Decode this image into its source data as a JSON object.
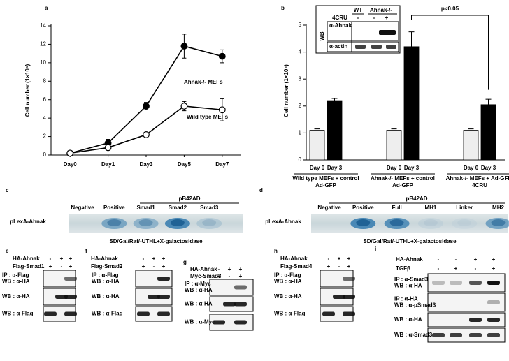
{
  "chart_data": [
    {
      "type": "line",
      "panel": "a",
      "ylabel": "Cell number (1×10⁵)",
      "categories": [
        "Day0",
        "Day1",
        "Day3",
        "Day5",
        "Day7"
      ],
      "series": [
        {
          "name": "Ahnak-/- MEFs",
          "color": "#000000",
          "values": [
            0.2,
            1.3,
            5.3,
            11.8,
            10.7
          ],
          "errors": [
            0.1,
            0.4,
            0.4,
            1.3,
            0.7
          ]
        },
        {
          "name": "Wild type MEFs",
          "color": "#ffffff",
          "values": [
            0.2,
            0.8,
            2.2,
            5.3,
            4.9
          ],
          "errors": [
            0.05,
            0.2,
            0.1,
            0.5,
            1.2
          ]
        }
      ],
      "ylim": [
        0,
        14
      ],
      "yticks": [
        0,
        2,
        4,
        6,
        8,
        10,
        12,
        14
      ]
    },
    {
      "type": "bar",
      "panel": "b",
      "ylabel": "Cell number (1×10⁵)",
      "categories": [
        "Wild type MEFs + control Ad-GFP",
        "Ahnak-/- MEFs + control Ad-GFP",
        "Ahnak-/- MEFs + Ad-GFP-4CRU"
      ],
      "series": [
        {
          "name": "Day 0",
          "color": "#eeeeee",
          "values": [
            1.1,
            1.1,
            1.1
          ],
          "errors": [
            0.05,
            0.05,
            0.05
          ]
        },
        {
          "name": "Day 3",
          "color": "#000000",
          "values": [
            2.2,
            4.2,
            2.05
          ],
          "errors": [
            0.08,
            0.55,
            0.2
          ]
        }
      ],
      "ylim": [
        0,
        5
      ],
      "yticks": [
        0,
        1,
        2,
        3,
        4,
        5
      ],
      "annotation": "p<0.05",
      "inset": {
        "columns": [
          "WT",
          "Ahnak-/-"
        ],
        "treatment": "4CRU",
        "signs": [
          "-",
          "-",
          "+"
        ],
        "side_label": "WB",
        "blots": [
          "α-Ahnak",
          "α-actin"
        ]
      }
    }
  ],
  "panels": {
    "assays": [
      {
        "letter": "c",
        "group_label": "pB42AD",
        "columns": [
          "Negative",
          "Positive",
          "Smad1",
          "Smad2",
          "Smad3"
        ],
        "row_label": "pLexA-Ahnak",
        "caption": "SD/Gal/Raf/-UTHL+X-galactosidase"
      },
      {
        "letter": "d",
        "group_label": "pB42AD",
        "columns": [
          "Negative",
          "Positive",
          "Full",
          "MH1",
          "Linker",
          "MH2"
        ],
        "row_label": "pLexA-Ahnak",
        "caption": "SD/Gal/Raf/-UTHL+X-galactosidase"
      }
    ],
    "blots": [
      {
        "letter": "e",
        "rows": [
          {
            "label": "HA-Ahnak",
            "signs": [
              "-",
              "+",
              "+"
            ]
          },
          {
            "label": "Flag-Smad1",
            "signs": [
              "+",
              "-",
              "+"
            ]
          }
        ],
        "blots": [
          [
            "IP : α-Flag",
            "WB : α-HA"
          ],
          [
            "WB : α-HA"
          ],
          [
            "WB : α-Flag"
          ]
        ]
      },
      {
        "letter": "f",
        "rows": [
          {
            "label": "HA-Ahnak",
            "signs": [
              "-",
              "+",
              "+"
            ]
          },
          {
            "label": "Flag-Smad2",
            "signs": [
              "+",
              "-",
              "+"
            ]
          }
        ],
        "blots": [
          [
            "IP : α-Flag",
            "WB : α-HA"
          ],
          [
            "WB : α-HA"
          ],
          [
            "WB : α-Flag"
          ]
        ]
      },
      {
        "letter": "g",
        "rows": [
          {
            "label": "HA-Ahnak",
            "signs": [
              "-",
              "+",
              "+"
            ]
          },
          {
            "label": "Myc-Smad3",
            "signs": [
              "+",
              "-",
              "+"
            ]
          }
        ],
        "blots": [
          [
            "IP : α-Myc",
            "WB : α-HA"
          ],
          [
            "WB : α-HA"
          ],
          [
            "WB : α-Myc"
          ]
        ]
      },
      {
        "letter": "h",
        "rows": [
          {
            "label": "HA-Ahnak",
            "signs": [
              "-",
              "+",
              "+"
            ]
          },
          {
            "label": "Flag-Smad4",
            "signs": [
              "+",
              "-",
              "+"
            ]
          }
        ],
        "blots": [
          [
            "IP : α-Flag",
            "WB : α-HA"
          ],
          [
            "WB : α-HA"
          ],
          [
            "WB : α-Flag"
          ]
        ]
      },
      {
        "letter": "i",
        "rows": [
          {
            "label": "HA-Ahnak",
            "signs": [
              "-",
              "-",
              "+",
              "+"
            ]
          },
          {
            "label": "TGFβ",
            "signs": [
              "-",
              "+",
              "-",
              "+"
            ]
          }
        ],
        "blots": [
          [
            "IP : α-Smad3",
            "WB : α-HA"
          ],
          [
            "IP : α-HA",
            "WB : α-pSmad3"
          ],
          [
            "WB : α-HA"
          ],
          [
            "WB : α-Smad3"
          ]
        ]
      }
    ]
  }
}
